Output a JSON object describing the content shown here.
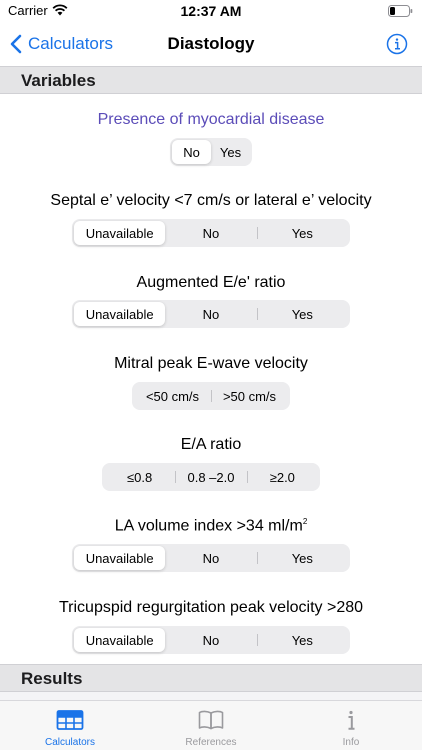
{
  "status": {
    "carrier": "Carrier",
    "time": "12:37 AM"
  },
  "nav": {
    "back_label": "Calculators",
    "title": "Diastology"
  },
  "sections": {
    "variables": "Variables",
    "results": "Results"
  },
  "questions": [
    {
      "label": "Presence of myocardial disease",
      "options": [
        "No",
        "Yes"
      ],
      "selected": "No"
    },
    {
      "label": "Septal e’ velocity <7 cm/s or lateral e’ velocity",
      "options": [
        "Unavailable",
        "No",
        "Yes"
      ],
      "selected": "Unavailable"
    },
    {
      "label": "Augmented E/e' ratio",
      "options": [
        "Unavailable",
        "No",
        "Yes"
      ],
      "selected": "Unavailable"
    },
    {
      "label": "Mitral peak E-wave velocity",
      "options": [
        "<50 cm/s",
        ">50 cm/s"
      ],
      "selected": ""
    },
    {
      "label": "E/A ratio",
      "options": [
        "≤0.8",
        "0.8 –2.0",
        "≥2.0"
      ],
      "selected": ""
    },
    {
      "label": "LA volume index >34 ml/m",
      "label_sup": "2",
      "options": [
        "Unavailable",
        "No",
        "Yes"
      ],
      "selected": "Unavailable"
    },
    {
      "label": "Tricupspid regurgitation peak velocity >280",
      "options": [
        "Unavailable",
        "No",
        "Yes"
      ],
      "selected": "Unavailable"
    }
  ],
  "tabs": [
    {
      "label": "Calculators",
      "icon": "table-icon",
      "active": true
    },
    {
      "label": "References",
      "icon": "book-icon",
      "active": false
    },
    {
      "label": "Info",
      "icon": "info-icon",
      "active": false
    }
  ],
  "colors": {
    "accent": "#1a73e8",
    "highlight_question": "#5b4cb8"
  }
}
